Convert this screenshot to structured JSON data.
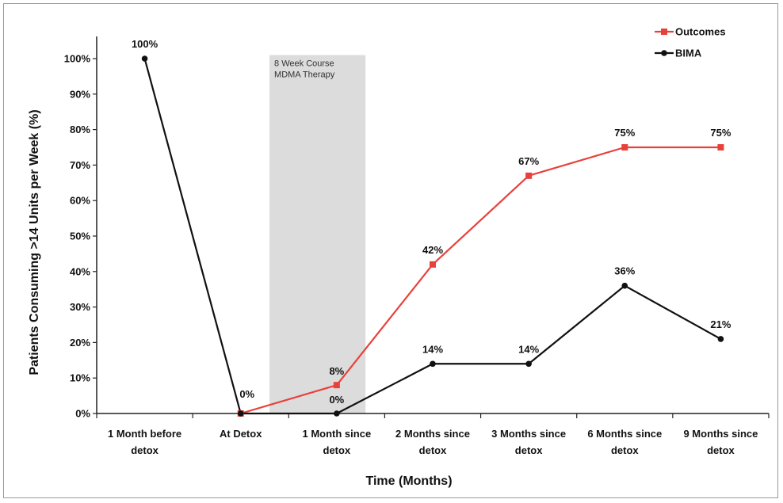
{
  "chart_data": {
    "type": "line",
    "title": "",
    "xlabel": "Time (Months)",
    "ylabel": "Patients Consuming >14 Units per Week (%)",
    "ylim": [
      0,
      100
    ],
    "yticks": [
      "0%",
      "10%",
      "20%",
      "30%",
      "40%",
      "50%",
      "60%",
      "70%",
      "80%",
      "90%",
      "100%"
    ],
    "categories": [
      [
        "1 Month before",
        "detox"
      ],
      [
        "At Detox"
      ],
      [
        "1 Month since",
        "detox"
      ],
      [
        "2 Months since",
        "detox"
      ],
      [
        "3 Months since",
        "detox"
      ],
      [
        "6 Months since",
        "detox"
      ],
      [
        "9 Months since",
        "detox"
      ]
    ],
    "legend_position": "top-right",
    "annotation": {
      "lines": [
        "8 Week Course",
        "MDMA Therapy"
      ],
      "from_category": 1.3,
      "to_category": 2.3
    },
    "series": [
      {
        "name": "Outcomes",
        "color": "#e8413b",
        "marker": "square",
        "points": [
          [
            1,
            0
          ],
          [
            2,
            8
          ],
          [
            3,
            42
          ],
          [
            4,
            67
          ],
          [
            5,
            75
          ],
          [
            6,
            75
          ]
        ],
        "labels": [
          "",
          "8%",
          "42%",
          "67%",
          "75%",
          "75%"
        ]
      },
      {
        "name": "BIMA",
        "color": "#111111",
        "marker": "circle",
        "points": [
          [
            0,
            100
          ],
          [
            1,
            0
          ],
          [
            2,
            0
          ],
          [
            3,
            14
          ],
          [
            4,
            14
          ],
          [
            5,
            36
          ],
          [
            6,
            21
          ]
        ],
        "labels": [
          "100%",
          "0%",
          "0%",
          "14%",
          "14%",
          "36%",
          "21%"
        ]
      }
    ]
  }
}
